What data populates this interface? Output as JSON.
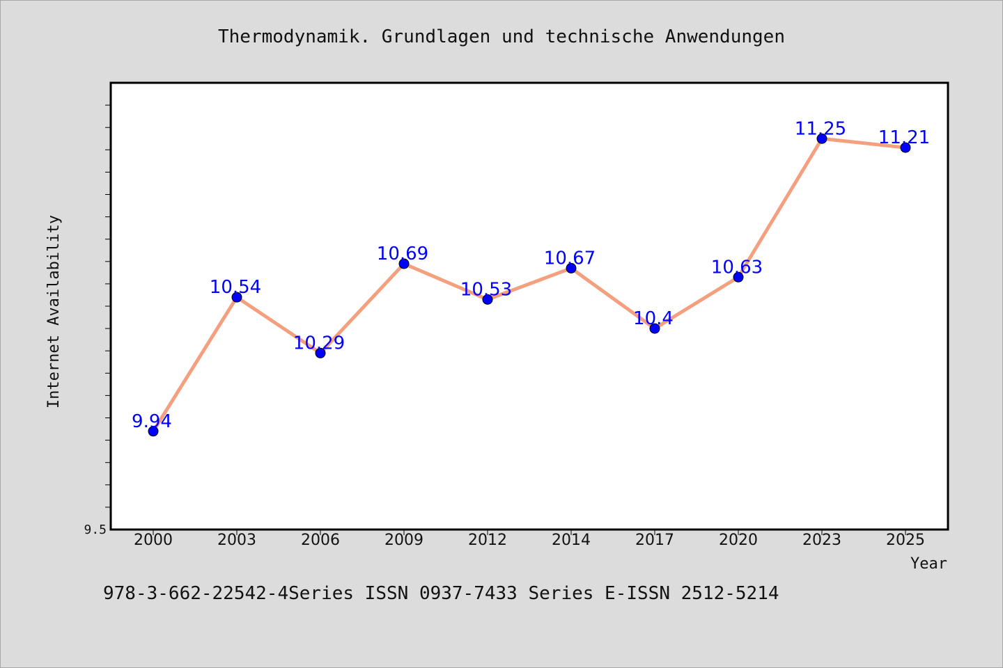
{
  "chart_data": {
    "type": "line",
    "title": "Thermodynamik. Grundlagen und technische Anwendungen",
    "xlabel": "Year",
    "ylabel": "Internet Availability",
    "categories": [
      "2000",
      "2003",
      "2006",
      "2009",
      "2012",
      "2014",
      "2017",
      "2020",
      "2023",
      "2025"
    ],
    "series": [
      {
        "values": [
          9.94,
          10.54,
          10.29,
          10.69,
          10.53,
          10.67,
          10.4,
          10.63,
          11.25,
          11.21
        ],
        "data_labels": [
          "9.94",
          "10.54",
          "10.29",
          "10.69",
          "10.53",
          "10.67",
          "10.4",
          "10.63",
          "11.25",
          "11.21"
        ]
      }
    ],
    "ylim": [
      9.5,
      11.5
    ],
    "ytick_labels": [
      "9.5"
    ],
    "grid": false,
    "colors": {
      "line": "#f4a07f",
      "marker": "#0000ff",
      "label": "#0000ff",
      "plot_bg": "#ffffff",
      "page_bg": "#dcdcdc"
    }
  },
  "footer": {
    "text": "978-3-662-22542-4Series ISSN 0937-7433 Series E-ISSN 2512-5214"
  }
}
